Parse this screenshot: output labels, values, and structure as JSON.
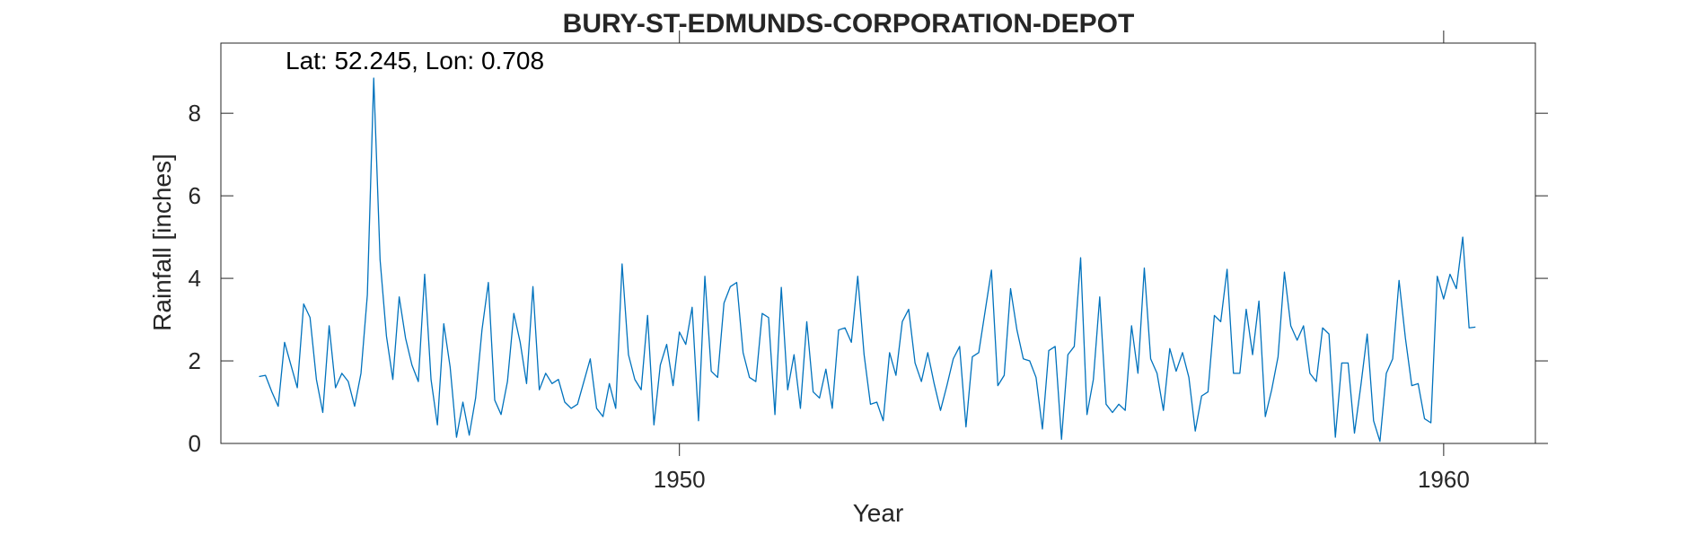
{
  "chart_data": {
    "type": "line",
    "title": "BURY-ST-EDMUNDS-CORPORATION-DEPOT",
    "annotation": "Lat: 52.245, Lon: 0.708",
    "xlabel": "Year",
    "ylabel": "Rainfall [inches]",
    "xlim": [
      1944.0,
      1961.2
    ],
    "ylim": [
      0,
      9.7
    ],
    "xticks": [
      1950,
      1960
    ],
    "yticks": [
      0,
      2,
      4,
      6,
      8
    ],
    "grid": false,
    "line_color": "#0072BD",
    "x_start_year": 1944.5,
    "x_step_years": 0.08333,
    "series": [
      {
        "values": [
          1.62,
          1.65,
          1.25,
          0.9,
          2.45,
          1.9,
          1.35,
          3.38,
          3.05,
          1.55,
          0.75,
          2.85,
          1.35,
          1.7,
          1.5,
          0.9,
          1.7,
          3.6,
          8.85,
          4.45,
          2.6,
          1.55,
          3.55,
          2.55,
          1.9,
          1.5,
          4.1,
          1.55,
          0.45,
          2.9,
          1.85,
          0.15,
          1.0,
          0.2,
          1.1,
          2.75,
          3.9,
          1.05,
          0.7,
          1.5,
          3.15,
          2.45,
          1.45,
          3.8,
          1.3,
          1.7,
          1.45,
          1.55,
          1.0,
          0.85,
          0.95,
          1.5,
          2.05,
          0.85,
          0.65,
          1.45,
          0.85,
          4.35,
          2.15,
          1.55,
          1.3,
          3.1,
          0.45,
          1.9,
          2.4,
          1.4,
          2.7,
          2.4,
          3.3,
          0.55,
          4.05,
          1.75,
          1.6,
          3.4,
          3.8,
          3.9,
          2.2,
          1.6,
          1.5,
          3.15,
          3.05,
          0.7,
          3.78,
          1.3,
          2.15,
          0.85,
          2.95,
          1.25,
          1.1,
          1.8,
          0.85,
          2.75,
          2.8,
          2.45,
          4.05,
          2.15,
          0.95,
          1.0,
          0.55,
          2.2,
          1.65,
          2.95,
          3.25,
          1.95,
          1.5,
          2.2,
          1.45,
          0.8,
          1.4,
          2.05,
          2.35,
          0.4,
          2.1,
          2.2,
          3.2,
          4.2,
          1.4,
          1.65,
          3.75,
          2.75,
          2.05,
          2.0,
          1.6,
          0.35,
          2.25,
          2.35,
          0.1,
          2.15,
          2.35,
          4.5,
          0.7,
          1.55,
          3.55,
          0.95,
          0.75,
          0.95,
          0.8,
          2.85,
          1.7,
          4.25,
          2.05,
          1.7,
          0.8,
          2.3,
          1.75,
          2.2,
          1.6,
          0.3,
          1.15,
          1.25,
          3.1,
          2.95,
          4.22,
          1.7,
          1.7,
          3.25,
          2.15,
          3.45,
          0.65,
          1.3,
          2.1,
          4.15,
          2.85,
          2.5,
          2.85,
          1.7,
          1.5,
          2.8,
          2.65,
          0.15,
          1.95,
          1.95,
          0.25,
          1.4,
          2.65,
          0.55,
          0.05,
          1.7,
          2.05,
          3.95,
          2.55,
          1.4,
          1.45,
          0.6,
          0.5,
          4.05,
          3.5,
          4.1,
          3.75,
          5.0,
          2.8,
          2.82
        ]
      }
    ]
  }
}
